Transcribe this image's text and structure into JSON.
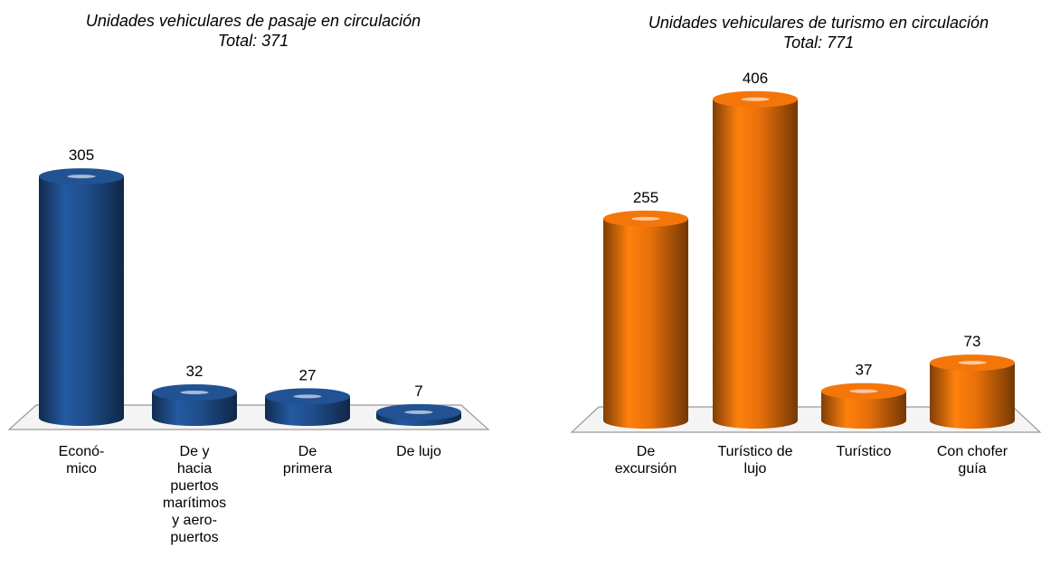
{
  "chart_data": [
    {
      "type": "bar",
      "title": "Unidades vehiculares de pasaje en circulación",
      "subtitle": "Total: 371",
      "categories": [
        "Econó-\nmico",
        "De y\nhacia\npuertos\nmarítimos\ny aero-\npuertos",
        "De\nprimera",
        "De lujo"
      ],
      "values": [
        305,
        32,
        27,
        7
      ],
      "color": "#1f4e8c"
    },
    {
      "type": "bar",
      "title": "Unidades vehiculares de turismo en circulación",
      "subtitle": "Total: 771",
      "categories": [
        "De\nexcursión",
        "Turístico de\nlujo",
        "Turístico",
        "Con chofer\nguía"
      ],
      "values": [
        255,
        406,
        37,
        73
      ],
      "color": "#e8700a"
    }
  ]
}
